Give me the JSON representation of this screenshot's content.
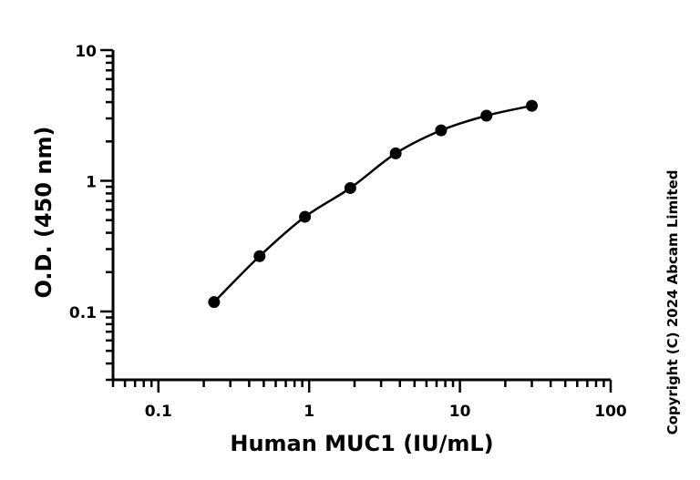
{
  "chart_data": {
    "type": "scatter",
    "title": "",
    "xlabel": "Human MUC1 (IU/mL)",
    "ylabel": "O.D. (450 nm)",
    "xscale": "log",
    "yscale": "log",
    "xlim": [
      0.05,
      100
    ],
    "ylim": [
      0.03,
      10
    ],
    "xticks": [
      0.1,
      1,
      10,
      100
    ],
    "xtick_labels": [
      "0.1",
      "1",
      "10",
      "100"
    ],
    "yticks": [
      0.1,
      1,
      10
    ],
    "ytick_labels": [
      "0.1",
      "1",
      "10"
    ],
    "grid": false,
    "legend": "none",
    "series": [
      {
        "x": [
          0.234,
          0.469,
          0.938,
          1.875,
          3.75,
          7.5,
          15,
          30
        ],
        "y": [
          0.118,
          0.265,
          0.53,
          0.88,
          1.62,
          2.43,
          3.15,
          3.75
        ],
        "marker": "circle",
        "fit_line": true,
        "color": "#000000"
      }
    ],
    "copyright": "Copyright (C) 2024 Abcam Limited"
  }
}
